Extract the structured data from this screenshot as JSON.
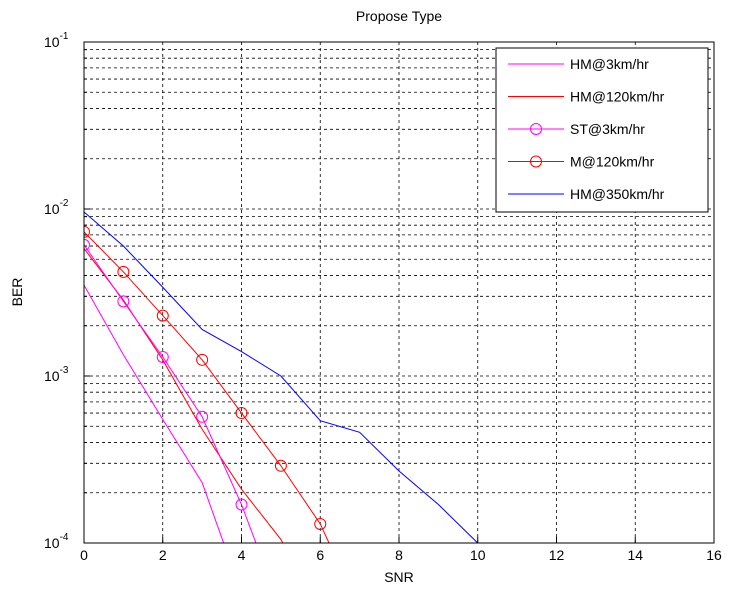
{
  "chart_data": {
    "type": "line",
    "title": "Propose Type",
    "x_label": "SNR",
    "y_label": "BER",
    "y_scale": "log",
    "grid": true,
    "legend_position": "upper right",
    "xlim": [
      0,
      16
    ],
    "xticks": [
      0,
      2,
      4,
      6,
      8,
      10,
      12,
      14,
      16
    ],
    "ylim": [
      0.0001,
      0.1
    ],
    "yticks": [
      {
        "value": 0.0001,
        "label": "10",
        "exponent": "-4"
      },
      {
        "value": 0.001,
        "label": "10",
        "exponent": "-3"
      },
      {
        "value": 0.01,
        "label": "10",
        "exponent": "-2"
      },
      {
        "value": 0.1,
        "label": "10",
        "exponent": "-1"
      }
    ],
    "yminorticks": [
      0.0002,
      0.0003,
      0.0004,
      0.0005,
      0.0006,
      0.0007,
      0.0008,
      0.0009,
      0.002,
      0.003,
      0.004,
      0.005,
      0.006,
      0.007,
      0.008,
      0.009,
      0.02,
      0.03,
      0.04,
      0.05,
      0.06,
      0.07,
      0.08,
      0.09
    ],
    "series": [
      {
        "name": "HM@3km/hr",
        "color": "#ff00ff",
        "marker": "none",
        "x": [
          0,
          1,
          2,
          3,
          4
        ],
        "values": [
          0.0035,
          0.00134,
          0.00055,
          0.00023,
          5e-05
        ]
      },
      {
        "name": "HM@120km/hr",
        "color": "#ff0000",
        "marker": "none",
        "x": [
          0,
          1,
          2,
          3,
          4,
          5,
          6
        ],
        "values": [
          0.0058,
          0.00285,
          0.00125,
          0.00048,
          0.00021,
          0.000105,
          4e-05
        ]
      },
      {
        "name": "ST@3km/hr",
        "color": "#ff00ff",
        "marker": "o",
        "x": [
          0,
          1,
          2,
          3,
          4,
          5
        ],
        "values": [
          0.0061,
          0.0028,
          0.0013,
          0.00057,
          0.00017,
          4e-05
        ]
      },
      {
        "name": "M@120km/hr",
        "color": "#ff0000",
        "marker": "o",
        "x": [
          0,
          1,
          2,
          3,
          4,
          5,
          6,
          7
        ],
        "values": [
          0.0073,
          0.0042,
          0.0023,
          0.00125,
          0.0006,
          0.00029,
          0.00013,
          4e-05
        ]
      },
      {
        "name": "HM@350km/hr",
        "color": "#0000ff",
        "marker": "none",
        "x": [
          0,
          1,
          2,
          3,
          4,
          5,
          6,
          7,
          8,
          9,
          10
        ],
        "values": [
          0.0096,
          0.006,
          0.0034,
          0.0019,
          0.0014,
          0.001,
          0.00054,
          0.00046,
          0.00027,
          0.00017,
          0.0001
        ]
      }
    ]
  }
}
